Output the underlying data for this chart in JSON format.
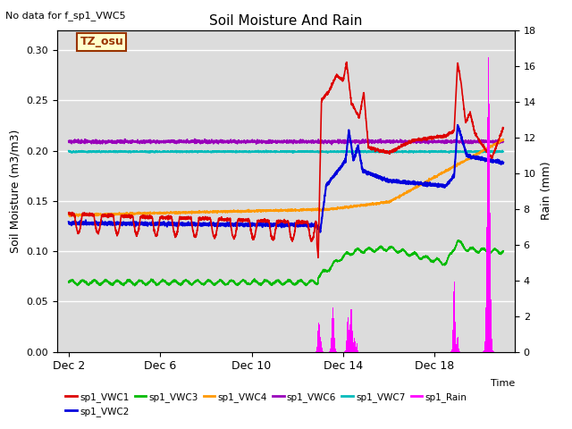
{
  "title": "Soil Moisture And Rain",
  "subtitle": "No data for f_sp1_VWC5",
  "ylabel_left": "Soil Moisture (m3/m3)",
  "ylabel_right": "Rain (mm)",
  "xlabel": "Time",
  "annotation": "TZ_osu",
  "ylim_left": [
    0.0,
    0.32
  ],
  "ylim_right": [
    0,
    18
  ],
  "xtick_labels": [
    "Dec 2",
    "Dec 6",
    "Dec 10",
    "Dec 14",
    "Dec 18"
  ],
  "xtick_positions": [
    0,
    4,
    8,
    12,
    16
  ],
  "yticks_left": [
    0.0,
    0.05,
    0.1,
    0.15,
    0.2,
    0.25,
    0.3
  ],
  "yticks_right": [
    0,
    2,
    4,
    6,
    8,
    10,
    12,
    14,
    16,
    18
  ],
  "bg_color": "#dcdcdc",
  "grid_color": "#c0c0c0",
  "series_colors": {
    "VWC1": "#dd0000",
    "VWC2": "#0000dd",
    "VWC3": "#00bb00",
    "VWC4": "#ff9900",
    "VWC6": "#9900bb",
    "VWC7": "#00bbbb",
    "Rain": "#ff00ff"
  },
  "legend_entries": [
    {
      "label": "sp1_VWC1",
      "color": "#dd0000"
    },
    {
      "label": "sp1_VWC2",
      "color": "#0000dd"
    },
    {
      "label": "sp1_VWC3",
      "color": "#00bb00"
    },
    {
      "label": "sp1_VWC4",
      "color": "#ff9900"
    },
    {
      "label": "sp1_VWC6",
      "color": "#9900bb"
    },
    {
      "label": "sp1_VWC7",
      "color": "#00bbbb"
    },
    {
      "label": "sp1_Rain",
      "color": "#ff00ff"
    }
  ]
}
